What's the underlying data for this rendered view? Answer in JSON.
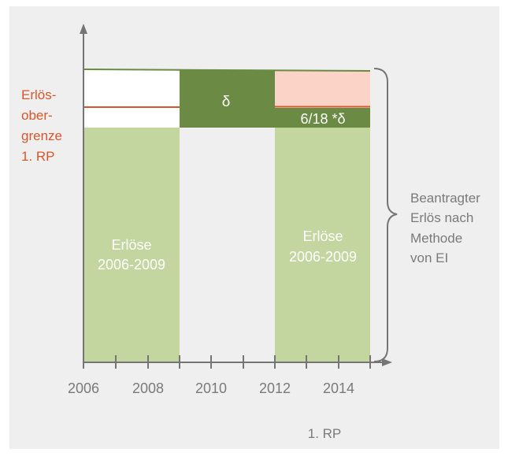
{
  "diagram": {
    "colors": {
      "background": "#efefef",
      "light_green": "#c3d69f",
      "dark_green": "#6b8a43",
      "red": "#d8562b",
      "pink": "#fbd3c7",
      "axis": "#757575",
      "label_gray": "#7a7a7a",
      "white": "#ffffff"
    },
    "x_tick_labels": [
      "2006",
      "2008",
      "2010",
      "2012",
      "2014"
    ],
    "x_sub_label": "1. RP",
    "left_label_lines": [
      "Erlös-",
      "ober-",
      "grenze",
      "1. RP"
    ],
    "bar_left_lines": [
      "Erlöse",
      "2006-2009"
    ],
    "bar_right_lines": [
      "Erlöse",
      "2006-2009"
    ],
    "delta_label": "δ",
    "fraction_label": "6/18 *δ",
    "brace_label_lines": [
      "Beantragter",
      "Erlös nach",
      "Methode",
      "von EI"
    ]
  }
}
